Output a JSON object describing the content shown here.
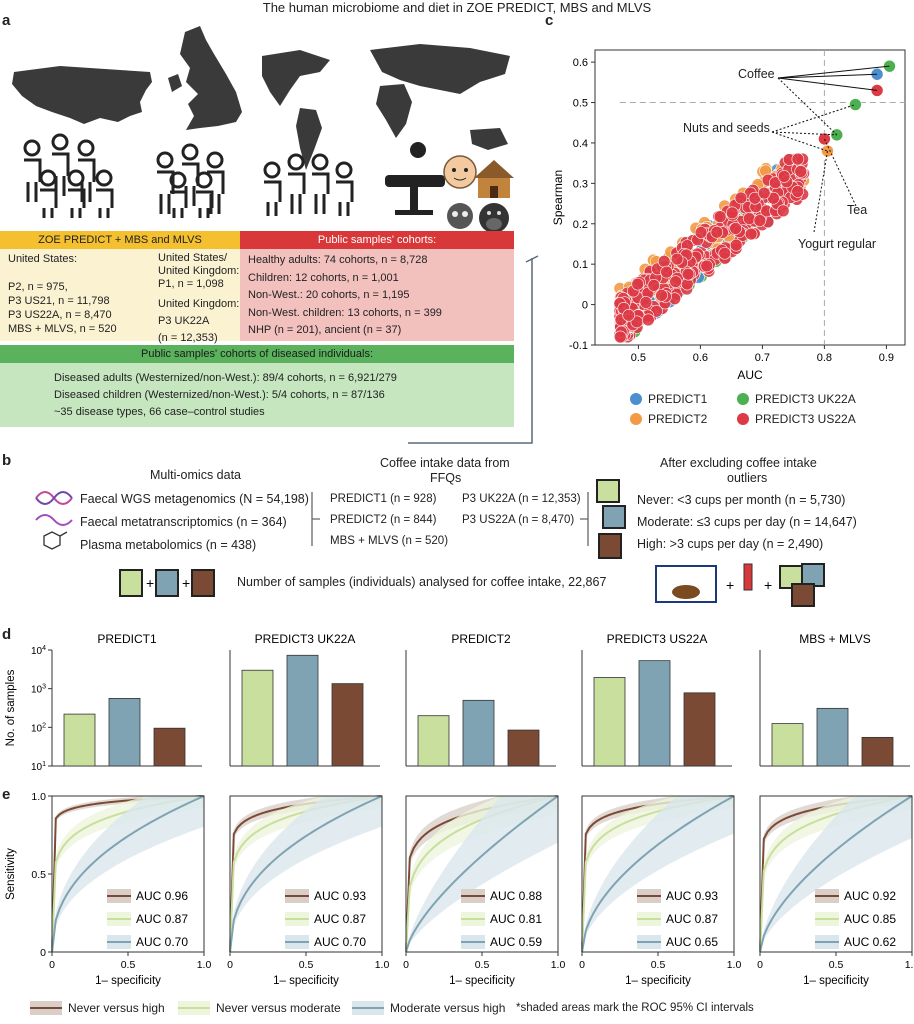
{
  "title": "The human microbiome and diet in ZOE PREDICT, MBS and MLVS",
  "panel_a": {
    "label": "a",
    "zoe_header": "ZOE PREDICT + MBS and MLVS",
    "zoe_left": [
      "United States:",
      "",
      "P2, n = 975,",
      "P3 US21, n = 11,798",
      "P3 US22A, n = 8,470",
      "MBS + MLVS, n = 520"
    ],
    "zoe_right": [
      "United States/",
      "United Kingdom:",
      "P1, n = 1,098",
      "",
      "United Kingdom:",
      "P3 UK22A",
      "(n = 12,353)"
    ],
    "public_header": "Public samples' cohorts:",
    "public_lines": [
      "Healthy adults: 74 cohorts, n = 8,728",
      "Children: 12 cohorts, n = 1,001",
      "Non-West.: 20 cohorts, n = 1,195",
      "Non-West. children: 13 cohorts, n = 399",
      "NHP (n = 201), ancient (n = 37)"
    ],
    "diseased_header": "Public samples' cohorts of diseased individuals:",
    "diseased_lines": [
      "Diseased adults (Westernized/non-West.): 89/4 cohorts, n = 6,921/279",
      "Diseased children (Westernized/non-West.): 5/4 cohorts, n = 87/136",
      "~35 disease types, 66 case–control studies"
    ]
  },
  "panel_b": {
    "label": "b",
    "multiomics_title": "Multi-omics data",
    "omics": [
      "Faecal WGS metagenomics (N = 54,198)",
      "Faecal metatranscriptomics (n = 364)",
      "Plasma metabolomics (n = 438)"
    ],
    "ffq_title_1": "Coffee intake data from",
    "ffq_title_2": "FFQs",
    "ffq_left": [
      "PREDICT1 (n = 928)",
      "PREDICT2 (n = 844)",
      "MBS + MLVS (n = 520)"
    ],
    "ffq_right": [
      "P3 UK22A (n = 12,353)",
      "P3 US22A (n = 8,470)"
    ],
    "outlier_title_1": "After excluding coffee intake",
    "outlier_title_2": "outliers",
    "groups": [
      "Never: <3 cups per month (n = 5,730)",
      "Moderate: ≤3 cups per day (n = 14,647)",
      "High: >3 cups per day (n = 2,490)"
    ],
    "samples_text": "Number of samples (individuals) analysed for coffee intake, 22,867"
  },
  "panel_c": {
    "label": "c",
    "annotations": [
      "Coffee",
      "Nuts and seeds",
      "Tea",
      "Yogurt regular"
    ],
    "legend": [
      {
        "name": "PREDICT1",
        "color": "#4c8fcf"
      },
      {
        "name": "PREDICT3 UK22A",
        "color": "#4caf50"
      },
      {
        "name": "PREDICT2",
        "color": "#f29a45"
      },
      {
        "name": "PREDICT3 US22A",
        "color": "#dc3a45"
      }
    ]
  },
  "panel_d": {
    "label": "d"
  },
  "panel_e": {
    "label": "e"
  },
  "legend_bottom": {
    "items": [
      "Never versus high",
      "Never versus moderate",
      "Moderate versus high"
    ],
    "note": "*shaded areas mark the ROC 95% CI intervals"
  },
  "chart_data": [
    {
      "type": "scatter",
      "panel": "c",
      "xlabel": "AUC",
      "ylabel": "Spearman",
      "xlim": [
        0.43,
        0.93
      ],
      "ylim": [
        -0.1,
        0.63
      ],
      "xticks": [
        "0.5",
        "0.6",
        "0.7",
        "0.8",
        "0.9"
      ],
      "yticks": [
        "-0.1",
        "0",
        "0.1",
        "0.2",
        "0.3",
        "0.4",
        "0.5",
        "0.6"
      ],
      "reference_lines": {
        "x": 0.8,
        "y": 0.5
      },
      "series": [
        {
          "name": "PREDICT1",
          "color": "#4c8fcf",
          "highlight": [
            [
              0.885,
              0.57
            ]
          ]
        },
        {
          "name": "PREDICT2",
          "color": "#f29a45",
          "highlight": [
            [
              0.805,
              0.38
            ]
          ]
        },
        {
          "name": "PREDICT3 UK22A",
          "color": "#4caf50",
          "highlight": [
            [
              0.905,
              0.59
            ],
            [
              0.85,
              0.495
            ],
            [
              0.82,
              0.42
            ]
          ]
        },
        {
          "name": "PREDICT3 US22A",
          "color": "#dc3a45",
          "highlight": [
            [
              0.885,
              0.53
            ],
            [
              0.8,
              0.41
            ]
          ]
        }
      ]
    },
    {
      "type": "bar",
      "panel": "d",
      "ylabel": "No. of samples",
      "yscale": "log",
      "ylim": [
        10,
        10000
      ],
      "yticks": [
        "10^1",
        "10^2",
        "10^3",
        "10^4"
      ],
      "categories": [
        "Never",
        "Moderate",
        "High"
      ],
      "colors": [
        "#c9df9e",
        "#7fa3b3",
        "#7b4a35"
      ],
      "panels": [
        {
          "name": "PREDICT1",
          "values": [
            220,
            560,
            95
          ]
        },
        {
          "name": "PREDICT3 UK22A",
          "values": [
            3000,
            7300,
            1350
          ]
        },
        {
          "name": "PREDICT2",
          "values": [
            200,
            500,
            85
          ]
        },
        {
          "name": "PREDICT3 US22A",
          "values": [
            1950,
            5300,
            780
          ]
        },
        {
          "name": "MBS + MLVS",
          "values": [
            125,
            310,
            55
          ]
        }
      ]
    },
    {
      "type": "line",
      "panel": "e",
      "xlabel": "1– specificity",
      "ylabel": "Sensitivity",
      "xlim": [
        0,
        1
      ],
      "ylim": [
        0,
        1
      ],
      "xticks": [
        "0",
        "0.5",
        "1.0"
      ],
      "yticks": [
        "0",
        "0.5",
        "1.0"
      ],
      "series_colors": [
        "#7b4a35",
        "#c9df9e",
        "#7fa3b3"
      ],
      "panels": [
        {
          "auc": [
            "AUC 0.96",
            "AUC 0.87",
            "AUC 0.70"
          ]
        },
        {
          "auc": [
            "AUC 0.93",
            "AUC 0.87",
            "AUC 0.70"
          ]
        },
        {
          "auc": [
            "AUC 0.88",
            "AUC 0.81",
            "AUC 0.59"
          ]
        },
        {
          "auc": [
            "AUC 0.93",
            "AUC 0.87",
            "AUC 0.65"
          ]
        },
        {
          "auc": [
            "AUC 0.92",
            "AUC 0.85",
            "AUC 0.62"
          ]
        }
      ]
    }
  ]
}
